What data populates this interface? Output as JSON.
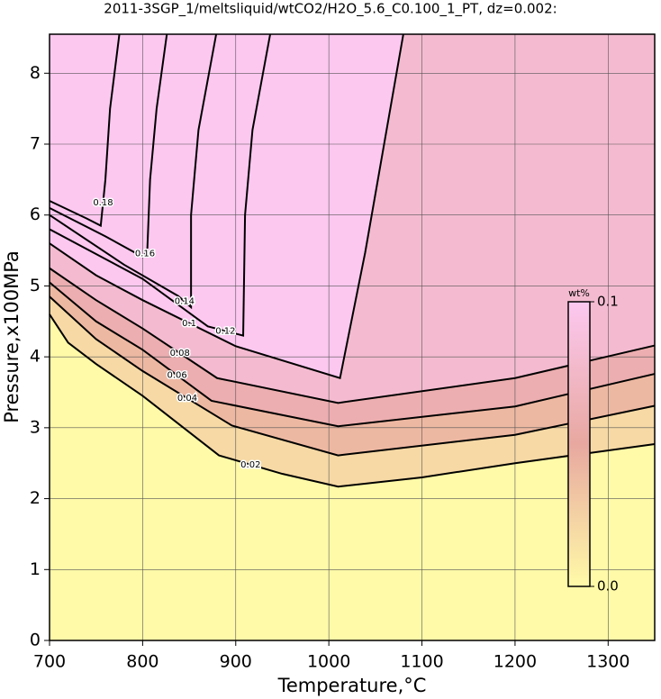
{
  "chart_data": {
    "type": "contour",
    "title": "2011-3SGP_1/meltsliquid/wtCO2/H2O_5.6_C0.100_1_PT, dz=0.002:",
    "x_label": "Temperature,°C",
    "y_label": "Pressure,x100MPa",
    "xlim": [
      700,
      1350
    ],
    "ylim": [
      0,
      8.55
    ],
    "xticks": [
      700,
      800,
      900,
      1000,
      1100,
      1200,
      1300
    ],
    "yticks": [
      0,
      1,
      2,
      3,
      4,
      5,
      6,
      7,
      8
    ],
    "grid": true,
    "background": "#fffaa8",
    "line_color": "#000000",
    "colormap": [
      "#fffaa8",
      "#e8a8a0",
      "#fcc8f0"
    ],
    "colorbar": {
      "title": "wt%",
      "clim": [
        0,
        0.1
      ],
      "ticks": [
        {
          "value": 0,
          "label": "0.0"
        },
        {
          "value": 0.1,
          "label": "0.1"
        }
      ]
    },
    "series": [
      {
        "name": "0.02",
        "level": 0.02,
        "x": [
          700,
          720,
          750,
          800,
          882,
          950,
          1010,
          1100,
          1200,
          1350
        ],
        "values": [
          4.6,
          4.2,
          3.9,
          3.45,
          2.61,
          2.35,
          2.17,
          2.3,
          2.5,
          2.77
        ]
      },
      {
        "name": "0.04",
        "level": 0.04,
        "x": [
          700,
          750,
          800,
          896,
          1010,
          1200,
          1350
        ],
        "values": [
          4.85,
          4.25,
          3.8,
          3.03,
          2.61,
          2.9,
          3.31
        ]
      },
      {
        "name": "0.06",
        "level": 0.06,
        "x": [
          700,
          750,
          800,
          874,
          1010,
          1200,
          1350
        ],
        "values": [
          5.05,
          4.5,
          4.1,
          3.38,
          3.02,
          3.3,
          3.76
        ]
      },
      {
        "name": "0.08",
        "level": 0.08,
        "x": [
          700,
          750,
          800,
          880,
          1010,
          1200,
          1350
        ],
        "values": [
          5.25,
          4.8,
          4.4,
          3.7,
          3.35,
          3.7,
          4.16
        ]
      },
      {
        "name": "0.1",
        "level": 0.1,
        "x": [
          700,
          750,
          800,
          900,
          1012,
          1039,
          1080
        ],
        "values": [
          5.6,
          5.15,
          4.8,
          4.15,
          3.7,
          5.47,
          8.55
        ]
      },
      {
        "name": "0.12",
        "level": 0.12,
        "x": [
          700,
          800,
          870,
          908,
          910,
          918,
          937
        ],
        "values": [
          5.8,
          5.1,
          4.43,
          4.3,
          6.0,
          7.2,
          8.55
        ]
      },
      {
        "name": "0.14",
        "level": 0.14,
        "x": [
          700,
          780,
          838,
          852,
          852,
          860,
          879
        ],
        "values": [
          6.0,
          5.3,
          4.86,
          4.7,
          6.0,
          7.2,
          8.55
        ]
      },
      {
        "name": "0.16",
        "level": 0.16,
        "x": [
          700,
          760,
          800,
          805,
          808,
          815,
          826
        ],
        "values": [
          6.1,
          5.7,
          5.41,
          5.5,
          6.5,
          7.5,
          8.55
        ]
      },
      {
        "name": "0.18",
        "level": 0.18,
        "x": [
          700,
          740,
          755,
          760,
          765,
          775
        ],
        "values": [
          6.2,
          5.95,
          5.85,
          6.5,
          7.5,
          8.55
        ]
      }
    ]
  }
}
